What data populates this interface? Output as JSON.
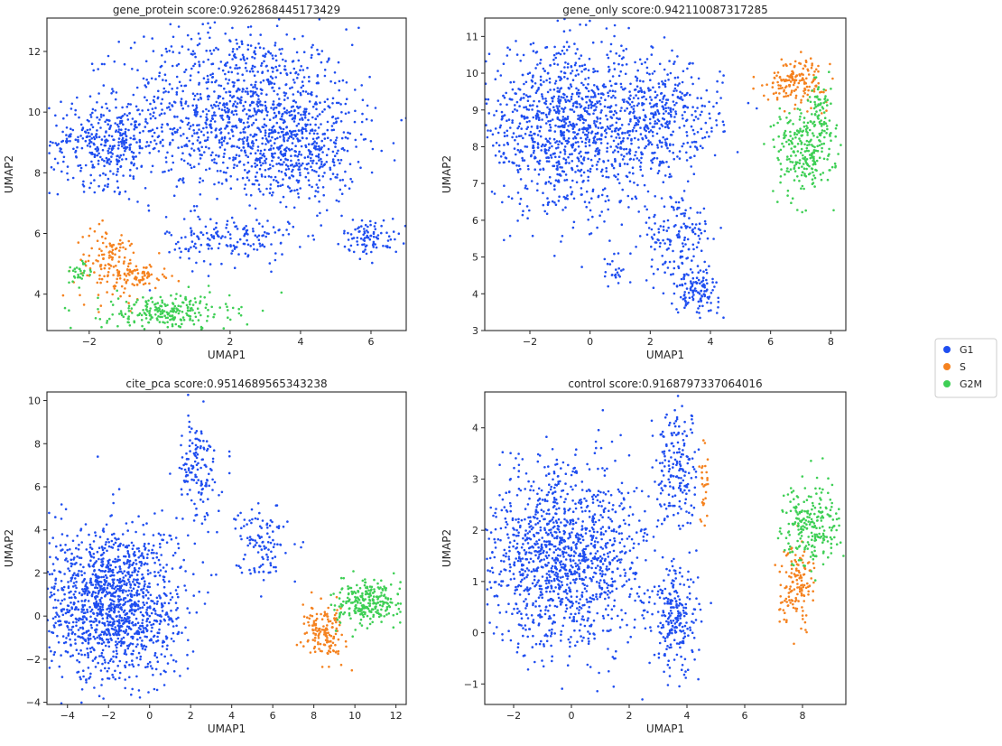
{
  "colors": {
    "G1": "#1f4ef0",
    "S": "#f5821f",
    "G2M": "#3ecf55"
  },
  "legend": {
    "placement": "right-center",
    "entries": [
      {
        "label": "G1",
        "color": "#1f4ef0"
      },
      {
        "label": "S",
        "color": "#f5821f"
      },
      {
        "label": "G2M",
        "color": "#3ecf55"
      }
    ]
  },
  "chart_data": [
    {
      "type": "scatter",
      "title": "gene_protein score:0.9262868445173429",
      "xlabel": "UMAP1",
      "ylabel": "UMAP2",
      "xlim": [
        -3.2,
        7.0
      ],
      "ylim": [
        2.8,
        13.1
      ],
      "xticks": [
        -2,
        0,
        2,
        4,
        6
      ],
      "yticks": [
        4,
        6,
        8,
        10,
        12
      ],
      "grid": false,
      "clusters": [
        {
          "series": "G1",
          "cx": 2.2,
          "cy": 10.0,
          "sx": 1.6,
          "sy": 1.4,
          "n": 1100
        },
        {
          "series": "G1",
          "cx": -1.5,
          "cy": 9.0,
          "sx": 0.8,
          "sy": 0.7,
          "n": 350
        },
        {
          "series": "G1",
          "cx": 4.0,
          "cy": 8.8,
          "sx": 0.8,
          "sy": 0.9,
          "n": 350
        },
        {
          "series": "G1",
          "cx": 2.0,
          "cy": 5.8,
          "sx": 0.9,
          "sy": 0.4,
          "n": 160
        },
        {
          "series": "G1",
          "cx": 6.0,
          "cy": 5.9,
          "sx": 0.4,
          "sy": 0.3,
          "n": 90
        },
        {
          "series": "S",
          "cx": -1.4,
          "cy": 5.0,
          "sx": 0.5,
          "sy": 0.6,
          "n": 140
        },
        {
          "series": "S",
          "cx": -0.5,
          "cy": 4.6,
          "sx": 0.4,
          "sy": 0.2,
          "n": 60
        },
        {
          "series": "G2M",
          "cx": 0.2,
          "cy": 3.4,
          "sx": 0.9,
          "sy": 0.3,
          "n": 240
        },
        {
          "series": "G2M",
          "cx": -2.3,
          "cy": 4.7,
          "sx": 0.2,
          "sy": 0.2,
          "n": 30
        }
      ]
    },
    {
      "type": "scatter",
      "title": "gene_only score:0.942110087317285",
      "xlabel": "UMAP1",
      "ylabel": "UMAP2",
      "xlim": [
        -3.5,
        8.5
      ],
      "ylim": [
        3.0,
        11.5
      ],
      "xticks": [
        -2,
        0,
        2,
        4,
        6,
        8
      ],
      "yticks": [
        3,
        4,
        5,
        6,
        7,
        8,
        9,
        10,
        11
      ],
      "grid": false,
      "clusters": [
        {
          "series": "G1",
          "cx": -0.6,
          "cy": 8.5,
          "sx": 1.6,
          "sy": 1.1,
          "n": 1200
        },
        {
          "series": "G1",
          "cx": 2.6,
          "cy": 8.8,
          "sx": 0.9,
          "sy": 0.7,
          "n": 300
        },
        {
          "series": "G1",
          "cx": 2.9,
          "cy": 5.5,
          "sx": 0.6,
          "sy": 0.6,
          "n": 150
        },
        {
          "series": "G1",
          "cx": 3.5,
          "cy": 4.1,
          "sx": 0.4,
          "sy": 0.3,
          "n": 120
        },
        {
          "series": "G1",
          "cx": 0.8,
          "cy": 4.6,
          "sx": 0.2,
          "sy": 0.2,
          "n": 20
        },
        {
          "series": "S",
          "cx": 6.9,
          "cy": 9.8,
          "sx": 0.5,
          "sy": 0.3,
          "n": 160
        },
        {
          "series": "G2M",
          "cx": 7.1,
          "cy": 7.9,
          "sx": 0.5,
          "sy": 0.6,
          "n": 250
        },
        {
          "series": "G2M",
          "cx": 7.6,
          "cy": 9.0,
          "sx": 0.2,
          "sy": 0.4,
          "n": 60
        }
      ]
    },
    {
      "type": "scatter",
      "title": "cite_pca score:0.9514689565343238",
      "xlabel": "UMAP1",
      "ylabel": "UMAP2",
      "xlim": [
        -5.0,
        12.5
      ],
      "ylim": [
        -4.1,
        10.4
      ],
      "xticks": [
        -4,
        -2,
        0,
        2,
        4,
        6,
        8,
        10,
        12
      ],
      "yticks": [
        -4,
        -2,
        0,
        2,
        4,
        6,
        8,
        10
      ],
      "grid": false,
      "clusters": [
        {
          "series": "G1",
          "cx": -1.8,
          "cy": 0.6,
          "sx": 1.7,
          "sy": 1.8,
          "n": 1400
        },
        {
          "series": "G1",
          "cx": 2.3,
          "cy": 6.8,
          "sx": 0.5,
          "sy": 1.2,
          "n": 140
        },
        {
          "series": "G1",
          "cx": 5.5,
          "cy": 3.5,
          "sx": 0.6,
          "sy": 0.9,
          "n": 110
        },
        {
          "series": "S",
          "cx": 8.5,
          "cy": -0.8,
          "sx": 0.5,
          "sy": 0.6,
          "n": 150
        },
        {
          "series": "G2M",
          "cx": 10.6,
          "cy": 0.6,
          "sx": 0.8,
          "sy": 0.5,
          "n": 260
        }
      ]
    },
    {
      "type": "scatter",
      "title": "control score:0.9168797337064016",
      "xlabel": "UMAP1",
      "ylabel": "UMAP2",
      "xlim": [
        -3.0,
        9.5
      ],
      "ylim": [
        -1.4,
        4.7
      ],
      "xticks": [
        -2,
        0,
        2,
        4,
        6,
        8
      ],
      "yticks": [
        -1,
        0,
        1,
        2,
        3,
        4
      ],
      "grid": false,
      "clusters": [
        {
          "series": "G1",
          "cx": -0.2,
          "cy": 1.5,
          "sx": 1.4,
          "sy": 0.9,
          "n": 1300
        },
        {
          "series": "G1",
          "cx": 3.6,
          "cy": 0.2,
          "sx": 0.4,
          "sy": 0.5,
          "n": 220
        },
        {
          "series": "G1",
          "cx": 3.7,
          "cy": 3.1,
          "sx": 0.4,
          "sy": 0.6,
          "n": 180
        },
        {
          "series": "S",
          "cx": 7.8,
          "cy": 1.0,
          "sx": 0.3,
          "sy": 0.4,
          "n": 140
        },
        {
          "series": "S",
          "cx": 4.6,
          "cy": 3.0,
          "sx": 0.1,
          "sy": 0.4,
          "n": 30
        },
        {
          "series": "G2M",
          "cx": 8.3,
          "cy": 2.1,
          "sx": 0.5,
          "sy": 0.4,
          "n": 230
        }
      ]
    }
  ]
}
